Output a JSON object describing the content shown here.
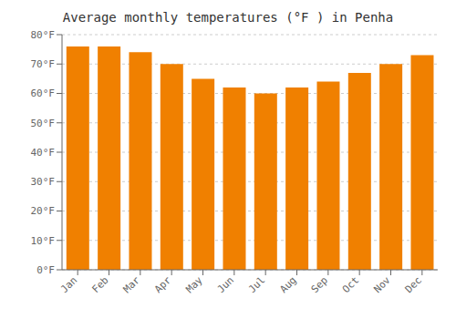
{
  "chart_data": {
    "type": "bar",
    "title": "Average monthly temperatures (°F ) in Penha",
    "categories": [
      "Jan",
      "Feb",
      "Mar",
      "Apr",
      "May",
      "Jun",
      "Jul",
      "Aug",
      "Sep",
      "Oct",
      "Nov",
      "Dec"
    ],
    "values": [
      76,
      76,
      74,
      70,
      65,
      62,
      60,
      62,
      64,
      67,
      70,
      73
    ],
    "color": "#F08000",
    "ylim": [
      0,
      80
    ],
    "yticks": [
      {
        "value": 0,
        "label": "0°F"
      },
      {
        "value": 10,
        "label": "10°F"
      },
      {
        "value": 20,
        "label": "20°F"
      },
      {
        "value": 30,
        "label": "30°F"
      },
      {
        "value": 40,
        "label": "40°F"
      },
      {
        "value": 50,
        "label": "50°F"
      },
      {
        "value": 60,
        "label": "60°F"
      },
      {
        "value": 70,
        "label": "70°F"
      },
      {
        "value": 80,
        "label": "80°F"
      }
    ],
    "grid": true
  }
}
